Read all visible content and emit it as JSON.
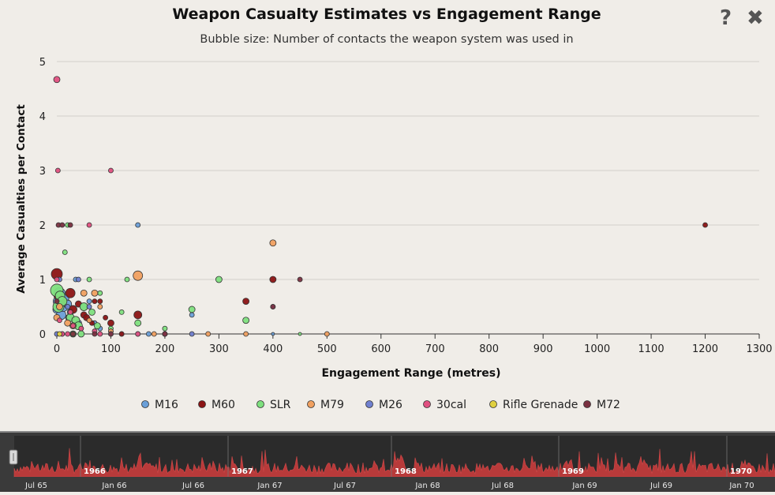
{
  "toolbar": {
    "help_label": "?",
    "close_label": "✖"
  },
  "chart_data": {
    "type": "scatter",
    "title": "Weapon Casualty Estimates vs Engagement Range",
    "subtitle": "Bubble size: Number of contacts the weapon system was used in",
    "xlabel": "Engagement Range (metres)",
    "ylabel": "Average Casualties per Contact",
    "xlim": [
      0,
      1300
    ],
    "ylim": [
      0,
      5
    ],
    "x_ticks": [
      0,
      100,
      200,
      300,
      400,
      500,
      600,
      700,
      800,
      900,
      1000,
      1100,
      1200,
      1300
    ],
    "y_ticks": [
      0,
      1,
      2,
      3,
      4,
      5
    ],
    "grid": "horizontal",
    "legend_position": "bottom",
    "series": [
      {
        "name": "M16",
        "color": "#6a9fd8",
        "points": [
          [
            0,
            0.45,
            5
          ],
          [
            2,
            0.6,
            6
          ],
          [
            5,
            0.75,
            7
          ],
          [
            8,
            0.35,
            6
          ],
          [
            12,
            0.5,
            6
          ],
          [
            15,
            0.65,
            5
          ],
          [
            20,
            0.55,
            5
          ],
          [
            22,
            0.3,
            4
          ],
          [
            25,
            0.4,
            4
          ],
          [
            30,
            0.15,
            3
          ],
          [
            35,
            1.0,
            3
          ],
          [
            40,
            0.2,
            4
          ],
          [
            45,
            0.1,
            3
          ],
          [
            50,
            0.5,
            4
          ],
          [
            60,
            0.6,
            3
          ],
          [
            70,
            0.2,
            3
          ],
          [
            80,
            0.1,
            3
          ],
          [
            100,
            0.05,
            3
          ],
          [
            120,
            0.0,
            3
          ],
          [
            150,
            2.0,
            3
          ],
          [
            170,
            0.0,
            3
          ],
          [
            250,
            0.35,
            3
          ],
          [
            400,
            0.0,
            2
          ]
        ]
      },
      {
        "name": "M60",
        "color": "#8b1414",
        "points": [
          [
            0,
            1.1,
            7
          ],
          [
            2,
            0.7,
            5
          ],
          [
            5,
            0.55,
            5
          ],
          [
            10,
            0.6,
            5
          ],
          [
            25,
            0.75,
            6
          ],
          [
            30,
            0.45,
            5
          ],
          [
            40,
            0.55,
            4
          ],
          [
            50,
            0.35,
            4
          ],
          [
            55,
            0.3,
            4
          ],
          [
            60,
            0.25,
            3
          ],
          [
            65,
            0.2,
            3
          ],
          [
            70,
            0.6,
            3
          ],
          [
            80,
            0.6,
            3
          ],
          [
            90,
            0.3,
            3
          ],
          [
            100,
            0.2,
            4
          ],
          [
            120,
            0.0,
            3
          ],
          [
            150,
            0.35,
            5
          ],
          [
            200,
            0.0,
            3
          ],
          [
            350,
            0.6,
            4
          ],
          [
            400,
            1.0,
            4
          ],
          [
            1200,
            2.0,
            3
          ]
        ]
      },
      {
        "name": "SLR",
        "color": "#7ee07e",
        "points": [
          [
            0,
            0.8,
            8
          ],
          [
            3,
            0.5,
            7
          ],
          [
            6,
            0.7,
            6
          ],
          [
            10,
            0.6,
            6
          ],
          [
            15,
            1.5,
            3
          ],
          [
            20,
            2.0,
            3
          ],
          [
            25,
            0.3,
            5
          ],
          [
            30,
            0.0,
            4
          ],
          [
            35,
            0.25,
            5
          ],
          [
            40,
            0.15,
            5
          ],
          [
            45,
            0.0,
            4
          ],
          [
            50,
            0.5,
            5
          ],
          [
            60,
            1.0,
            3
          ],
          [
            65,
            0.4,
            4
          ],
          [
            75,
            0.15,
            4
          ],
          [
            80,
            0.75,
            3
          ],
          [
            100,
            0.1,
            3
          ],
          [
            120,
            0.4,
            3
          ],
          [
            130,
            1.0,
            3
          ],
          [
            150,
            0.2,
            4
          ],
          [
            200,
            0.1,
            3
          ],
          [
            250,
            0.45,
            4
          ],
          [
            300,
            1.0,
            4
          ],
          [
            350,
            0.25,
            4
          ],
          [
            450,
            0.0,
            2
          ]
        ]
      },
      {
        "name": "M79",
        "color": "#f0a060",
        "points": [
          [
            0,
            0.3,
            4
          ],
          [
            5,
            0.5,
            4
          ],
          [
            20,
            0.2,
            4
          ],
          [
            30,
            0.15,
            4
          ],
          [
            50,
            0.75,
            4
          ],
          [
            60,
            0.25,
            3
          ],
          [
            70,
            0.75,
            4
          ],
          [
            80,
            0.5,
            3
          ],
          [
            100,
            0.05,
            3
          ],
          [
            150,
            1.07,
            6
          ],
          [
            180,
            0.0,
            3
          ],
          [
            200,
            0.0,
            3
          ],
          [
            280,
            0.0,
            3
          ],
          [
            350,
            0.0,
            3
          ],
          [
            400,
            1.67,
            4
          ],
          [
            500,
            0.0,
            3
          ]
        ]
      },
      {
        "name": "M26",
        "color": "#7080d0",
        "points": [
          [
            0,
            0.0,
            3
          ],
          [
            5,
            1.0,
            3
          ],
          [
            10,
            0.0,
            3
          ],
          [
            20,
            0.5,
            3
          ],
          [
            40,
            1.0,
            3
          ],
          [
            60,
            0.5,
            3
          ],
          [
            100,
            0.0,
            3
          ],
          [
            150,
            0.0,
            3
          ],
          [
            200,
            0.0,
            3
          ],
          [
            250,
            0.0,
            3
          ],
          [
            400,
            0.5,
            3
          ]
        ]
      },
      {
        "name": "30cal",
        "color": "#e05080",
        "points": [
          [
            0,
            4.67,
            4
          ],
          [
            0,
            1.0,
            3
          ],
          [
            2,
            3.0,
            3
          ],
          [
            5,
            0.25,
            3
          ],
          [
            10,
            0.0,
            3
          ],
          [
            20,
            0.0,
            3
          ],
          [
            25,
            0.4,
            3
          ],
          [
            30,
            0.15,
            3
          ],
          [
            45,
            0.1,
            3
          ],
          [
            60,
            2.0,
            3
          ],
          [
            70,
            0.05,
            3
          ],
          [
            80,
            0.0,
            3
          ],
          [
            100,
            3.0,
            3
          ],
          [
            150,
            0.0,
            3
          ],
          [
            200,
            0.0,
            3
          ]
        ]
      },
      {
        "name": "Rifle Grenade",
        "color": "#e0d040",
        "points": [
          [
            5,
            0.0,
            3
          ],
          [
            30,
            0.0,
            3
          ]
        ]
      },
      {
        "name": "M72",
        "color": "#7a3040",
        "points": [
          [
            0,
            0.6,
            3
          ],
          [
            3,
            2.0,
            3
          ],
          [
            10,
            2.0,
            3
          ],
          [
            25,
            2.0,
            3
          ],
          [
            30,
            0.0,
            3
          ],
          [
            70,
            0.0,
            3
          ],
          [
            100,
            0.0,
            3
          ],
          [
            200,
            0.0,
            3
          ],
          [
            400,
            0.5,
            3
          ],
          [
            450,
            1.0,
            3
          ]
        ]
      }
    ]
  },
  "timeline": {
    "year_labels": [
      "1966",
      "1967",
      "1968",
      "1969",
      "1970"
    ],
    "month_labels": [
      "Jul 65",
      "Jan 66",
      "Jul 66",
      "Jan 67",
      "Jul 67",
      "Jan 68",
      "Jul 68",
      "Jan 69",
      "Jul 69",
      "Jan 70"
    ]
  }
}
